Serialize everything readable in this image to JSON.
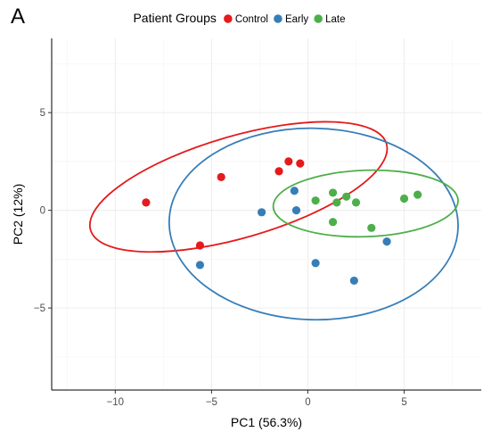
{
  "panel_label": "A",
  "chart_data": {
    "type": "scatter",
    "title": "",
    "xlabel": "PC1 (56.3%)",
    "ylabel": "PC2 (12%)",
    "xlim": [
      -13.3,
      9.0
    ],
    "ylim": [
      -9.2,
      8.8
    ],
    "x_ticks": [
      -10,
      -5,
      0,
      5
    ],
    "y_ticks": [
      -5,
      0,
      5
    ],
    "x_tick_labels": [
      "−10",
      "−5",
      "0",
      "5"
    ],
    "y_tick_labels": [
      "−5",
      "0",
      "5"
    ],
    "grid": true,
    "legend": {
      "title": "Patient Groups",
      "placement": "top"
    },
    "series": [
      {
        "name": "Control",
        "color": "#e41a1c",
        "points": [
          [
            -8.4,
            0.4
          ],
          [
            -4.5,
            1.7
          ],
          [
            -5.6,
            -1.8
          ],
          [
            -1.5,
            2.0
          ],
          [
            -1.0,
            2.5
          ],
          [
            -0.4,
            2.4
          ]
        ],
        "ellipse": {
          "cx": -3.6,
          "cy": 1.2,
          "rx": 8.0,
          "ry": 2.6,
          "angle_deg": 16.2
        }
      },
      {
        "name": "Early",
        "color": "#377eb8",
        "points": [
          [
            -2.4,
            -0.1
          ],
          [
            -5.6,
            -2.8
          ],
          [
            -0.7,
            1.0
          ],
          [
            -0.6,
            0.0
          ],
          [
            0.4,
            -2.7
          ],
          [
            2.4,
            -3.6
          ],
          [
            4.1,
            -1.6
          ]
        ],
        "ellipse": {
          "cx": 0.3,
          "cy": -0.7,
          "rx": 7.5,
          "ry": 4.9,
          "angle_deg": -1.2
        }
      },
      {
        "name": "Late",
        "color": "#4daf4a",
        "points": [
          [
            0.4,
            0.5
          ],
          [
            1.3,
            0.9
          ],
          [
            1.5,
            0.4
          ],
          [
            1.3,
            -0.6
          ],
          [
            2.0,
            0.7
          ],
          [
            2.5,
            0.4
          ],
          [
            3.3,
            -0.9
          ],
          [
            5.0,
            0.6
          ],
          [
            5.7,
            0.8
          ]
        ],
        "ellipse": {
          "cx": 3.0,
          "cy": 0.35,
          "rx": 4.8,
          "ry": 1.7,
          "angle_deg": 2.0
        }
      }
    ]
  }
}
